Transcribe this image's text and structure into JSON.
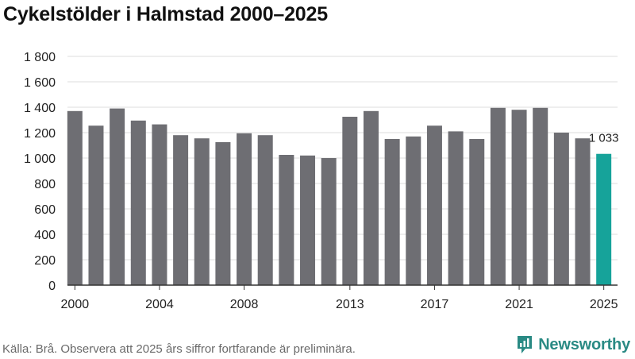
{
  "title": "Cykelstölder i Halmstad 2000–2025",
  "source": "Källa: Brå. Observera att 2025 års siffror fortfarande är preliminära.",
  "brand": {
    "name": "Newsworthy",
    "icon": "newsworthy-logo-icon"
  },
  "colors": {
    "bar": "#6e6e73",
    "highlight": "#16a39a",
    "grid": "#dddddd",
    "axis": "#333333",
    "brand": "#2a8a84"
  },
  "chart_data": {
    "type": "bar",
    "title": "Cykelstölder i Halmstad 2000–2025",
    "xlabel": "",
    "ylabel": "",
    "categories": [
      "2000",
      "2001",
      "2002",
      "2003",
      "2004",
      "2005",
      "2006",
      "2007",
      "2008",
      "2009",
      "2010",
      "2011",
      "2012",
      "2013",
      "2014",
      "2015",
      "2016",
      "2017",
      "2018",
      "2019",
      "2020",
      "2021",
      "2022",
      "2023",
      "2024",
      "2025"
    ],
    "values": [
      1370,
      1255,
      1390,
      1295,
      1265,
      1180,
      1155,
      1125,
      1195,
      1180,
      1025,
      1020,
      1000,
      1325,
      1370,
      1150,
      1170,
      1255,
      1210,
      1150,
      1395,
      1380,
      1395,
      1200,
      1155,
      1033
    ],
    "ylim": [
      0,
      1800
    ],
    "yticks": [
      0,
      200,
      400,
      600,
      800,
      1000,
      1200,
      1400,
      1600,
      1800
    ],
    "ytick_labels": [
      "0",
      "200",
      "400",
      "600",
      "800",
      "1 000",
      "1 200",
      "1 400",
      "1 600",
      "1 800"
    ],
    "xtick_labels": [
      "2000",
      "2004",
      "2008",
      "2013",
      "2017",
      "2021",
      "2025"
    ],
    "grid": true,
    "highlight": {
      "category": "2025",
      "label": "1 033"
    }
  }
}
